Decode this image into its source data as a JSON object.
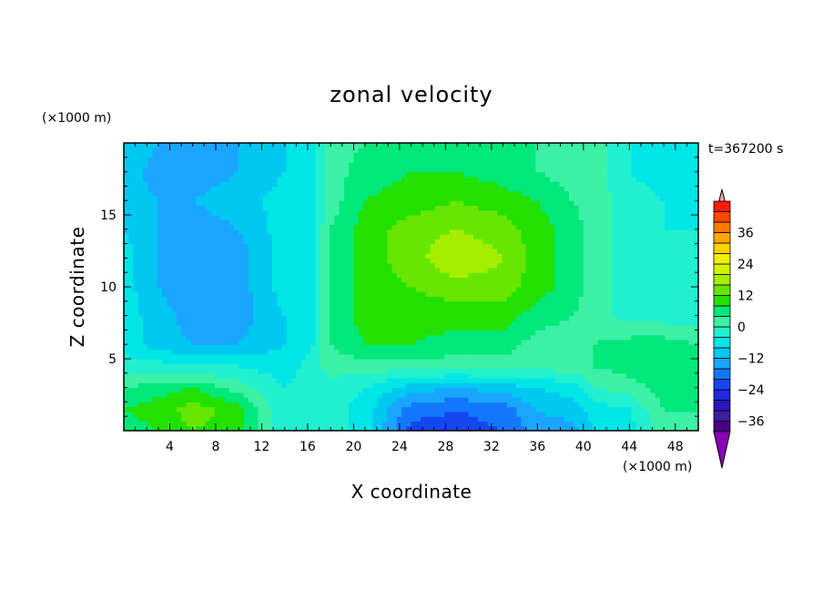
{
  "chart_data": {
    "type": "heatmap",
    "title": "zonal velocity",
    "xlabel": "X coordinate",
    "ylabel": "Z coordinate",
    "x_unit": "(×1000 m)",
    "y_unit": "(×1000 m)",
    "time_label": "t=367200 s",
    "xlim": [
      0,
      50
    ],
    "ylim": [
      0,
      20
    ],
    "x_ticks": [
      4,
      8,
      12,
      16,
      20,
      24,
      28,
      32,
      36,
      40,
      44,
      48
    ],
    "y_ticks": [
      5,
      10,
      15
    ],
    "colorbar": {
      "min": -40,
      "max": 40,
      "step": 4,
      "tick_values": [
        36,
        24,
        12,
        0,
        -12,
        -24,
        -36
      ],
      "extend": "both",
      "colors": [
        "#4b0082",
        "#3c1ea0",
        "#2818c0",
        "#1e28dc",
        "#1446f0",
        "#1478ff",
        "#1aa6ff",
        "#00c8f0",
        "#00e6e6",
        "#20f0d0",
        "#3cf0a6",
        "#00e87a",
        "#22e000",
        "#66e600",
        "#a6ee00",
        "#d2f200",
        "#f0f000",
        "#ffd200",
        "#ffa600",
        "#ff7a00",
        "#ff4600",
        "#ff1a00"
      ],
      "over_color": "#f4a6a6",
      "under_color": "#8a00b4"
    },
    "field": {
      "x_knots": [
        0,
        3,
        6,
        10,
        14,
        16.5,
        18,
        21,
        25,
        29,
        33,
        36,
        39,
        41,
        44,
        47,
        50
      ],
      "z_knots": [
        0,
        1.5,
        3,
        4.5,
        6,
        8,
        10,
        12,
        14,
        16,
        18,
        20
      ],
      "values": [
        [
          6,
          8,
          12,
          10,
          -4,
          -2,
          -2,
          -6,
          -22,
          -22,
          -20,
          -14,
          -14,
          -8,
          -6,
          2,
          2
        ],
        [
          8,
          10,
          14,
          10,
          -4,
          -2,
          -2,
          -6,
          -18,
          -20,
          -18,
          -12,
          -10,
          -6,
          -4,
          4,
          4
        ],
        [
          4,
          6,
          8,
          2,
          -4,
          -2,
          -2,
          -4,
          -10,
          -12,
          -10,
          -8,
          -6,
          0,
          2,
          6,
          4
        ],
        [
          -2,
          -2,
          -4,
          -4,
          -6,
          -2,
          2,
          2,
          2,
          2,
          2,
          2,
          2,
          4,
          6,
          8,
          6
        ],
        [
          -6,
          -10,
          -12,
          -12,
          -8,
          -4,
          4,
          8,
          8,
          6,
          6,
          2,
          2,
          4,
          6,
          6,
          4
        ],
        [
          -6,
          -10,
          -14,
          -14,
          -8,
          -4,
          4,
          10,
          10,
          10,
          10,
          6,
          4,
          2,
          -2,
          -2,
          -2
        ],
        [
          -6,
          -12,
          -16,
          -14,
          -6,
          -4,
          4,
          10,
          12,
          14,
          14,
          10,
          6,
          2,
          -2,
          -4,
          -2
        ],
        [
          -6,
          -12,
          -16,
          -14,
          -6,
          -4,
          4,
          10,
          14,
          20,
          16,
          10,
          6,
          2,
          -2,
          -4,
          -2
        ],
        [
          -8,
          -12,
          -14,
          -12,
          -6,
          -4,
          4,
          10,
          14,
          16,
          14,
          10,
          6,
          2,
          -2,
          -4,
          -4
        ],
        [
          -10,
          -12,
          -12,
          -10,
          -6,
          -4,
          2,
          8,
          10,
          12,
          10,
          8,
          4,
          2,
          -2,
          -4,
          -6
        ],
        [
          -10,
          -14,
          -14,
          -12,
          -8,
          -4,
          2,
          6,
          8,
          8,
          6,
          4,
          2,
          2,
          -4,
          -6,
          -8
        ],
        [
          -8,
          -12,
          -14,
          -12,
          -8,
          -4,
          2,
          4,
          6,
          6,
          4,
          4,
          2,
          2,
          -4,
          -6,
          -8
        ]
      ]
    }
  }
}
